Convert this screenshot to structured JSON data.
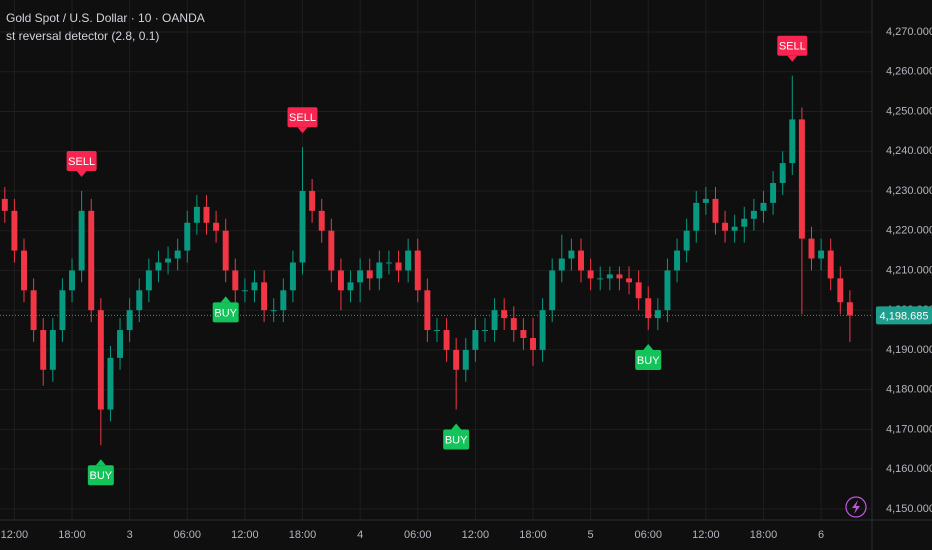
{
  "chart_data": {
    "type": "candlestick",
    "title": "Gold Spot / U.S. Dollar · 10 · OANDA",
    "subtitle": "st reversal detector (2.8, 0.1)",
    "x": [
      -1,
      0,
      1,
      2,
      3,
      4,
      5,
      6,
      7,
      8,
      9,
      10,
      11,
      12,
      13,
      14,
      15,
      16,
      17,
      18,
      19,
      20,
      21,
      22,
      23,
      24,
      25,
      26,
      27,
      28,
      29,
      30,
      31,
      32,
      33,
      34,
      35,
      36,
      37,
      38,
      39,
      40,
      41,
      42,
      43,
      44,
      45,
      46,
      47,
      48,
      49,
      50,
      51,
      52,
      53,
      54,
      55,
      56,
      57,
      58,
      59,
      60,
      61,
      62,
      63,
      64,
      65,
      66,
      67,
      68,
      69,
      70,
      71,
      72,
      73,
      74,
      75,
      76,
      77,
      78,
      79,
      80,
      81,
      82,
      83,
      84,
      85,
      86,
      87
    ],
    "open": [
      4228,
      4225,
      4215,
      4205,
      4195,
      4185,
      4195,
      4205,
      4210,
      4225,
      4200,
      4175,
      4188,
      4195,
      4200,
      4205,
      4210,
      4212,
      4213,
      4215,
      4222,
      4226,
      4222,
      4220,
      4210,
      4205,
      4205,
      4207,
      4200,
      4200,
      4205,
      4212,
      4230,
      4225,
      4220,
      4210,
      4205,
      4207,
      4210,
      4208,
      4212,
      4212,
      4210,
      4215,
      4205,
      4195,
      4195,
      4190,
      4185,
      4190,
      4195,
      4195,
      4200,
      4198,
      4195,
      4193,
      4190,
      4200,
      4210,
      4213,
      4215,
      4210,
      4208,
      4208,
      4209,
      4208,
      4207,
      4203,
      4198,
      4200,
      4210,
      4215,
      4220,
      4227,
      4228,
      4222,
      4220,
      4221,
      4223,
      4225,
      4227,
      4232,
      4237,
      4248,
      4218,
      4213,
      4215,
      4208,
      4202
    ],
    "high": [
      4231,
      4228,
      4218,
      4208,
      4198,
      4198,
      4208,
      4213,
      4230,
      4228,
      4203,
      4191,
      4198,
      4203,
      4208,
      4213,
      4215,
      4216,
      4218,
      4225,
      4229,
      4229,
      4225,
      4223,
      4213,
      4208,
      4210,
      4210,
      4203,
      4208,
      4215,
      4241,
      4233,
      4228,
      4223,
      4213,
      4210,
      4213,
      4213,
      4215,
      4215,
      4215,
      4218,
      4218,
      4208,
      4198,
      4198,
      4193,
      4193,
      4198,
      4198,
      4203,
      4203,
      4201,
      4198,
      4198,
      4203,
      4213,
      4219,
      4218,
      4218,
      4213,
      4211,
      4211,
      4211,
      4211,
      4210,
      4206,
      4203,
      4213,
      4218,
      4223,
      4230,
      4231,
      4231,
      4225,
      4224,
      4226,
      4228,
      4230,
      4235,
      4240,
      4259,
      4251,
      4221,
      4218,
      4218,
      4211,
      4205
    ],
    "low": [
      4222,
      4212,
      4202,
      4192,
      4181,
      4182,
      4192,
      4202,
      4207,
      4197,
      4166,
      4172,
      4185,
      4192,
      4197,
      4202,
      4207,
      4209,
      4210,
      4212,
      4219,
      4219,
      4217,
      4207,
      4202,
      4202,
      4202,
      4197,
      4197,
      4197,
      4202,
      4209,
      4222,
      4217,
      4207,
      4200,
      4202,
      4202,
      4205,
      4205,
      4209,
      4207,
      4207,
      4202,
      4192,
      4192,
      4187,
      4175,
      4182,
      4187,
      4192,
      4192,
      4195,
      4192,
      4190,
      4186,
      4187,
      4197,
      4207,
      4210,
      4207,
      4205,
      4205,
      4205,
      4205,
      4204,
      4200,
      4195,
      4195,
      4197,
      4207,
      4212,
      4217,
      4224,
      4219,
      4217,
      4217,
      4217,
      4220,
      4222,
      4224,
      4229,
      4234,
      4199,
      4210,
      4210,
      4205,
      4199,
      4192
    ],
    "close": [
      4225,
      4215,
      4205,
      4195,
      4185,
      4195,
      4205,
      4210,
      4225,
      4200,
      4175,
      4188,
      4195,
      4200,
      4205,
      4210,
      4212,
      4213,
      4215,
      4222,
      4226,
      4222,
      4220,
      4210,
      4205,
      4205,
      4207,
      4200,
      4200,
      4205,
      4212,
      4230,
      4225,
      4220,
      4210,
      4205,
      4207,
      4210,
      4208,
      4212,
      4212,
      4210,
      4215,
      4205,
      4195,
      4195,
      4190,
      4185,
      4190,
      4195,
      4195,
      4200,
      4198,
      4195,
      4193,
      4190,
      4200,
      4210,
      4213,
      4215,
      4210,
      4208,
      4208,
      4209,
      4208,
      4207,
      4203,
      4198,
      4200,
      4210,
      4215,
      4220,
      4227,
      4228,
      4222,
      4220,
      4221,
      4223,
      4225,
      4227,
      4232,
      4237,
      4248,
      4218,
      4213,
      4215,
      4208,
      4202,
      4198.685
    ],
    "up_color": "#089981",
    "down_color": "#f23645",
    "xlim": [
      -1.5,
      89.3
    ],
    "xticks": [
      {
        "value": 0,
        "label": "12:00"
      },
      {
        "value": 6,
        "label": "18:00"
      },
      {
        "value": 12,
        "label": "3"
      },
      {
        "value": 18,
        "label": "06:00"
      },
      {
        "value": 24,
        "label": "12:00"
      },
      {
        "value": 30,
        "label": "18:00"
      },
      {
        "value": 36,
        "label": "4"
      },
      {
        "value": 42,
        "label": "06:00"
      },
      {
        "value": 48,
        "label": "12:00"
      },
      {
        "value": 54,
        "label": "18:00"
      },
      {
        "value": 60,
        "label": "5"
      },
      {
        "value": 66,
        "label": "06:00"
      },
      {
        "value": 72,
        "label": "12:00"
      },
      {
        "value": 78,
        "label": "18:00"
      },
      {
        "value": 84,
        "label": "6"
      }
    ],
    "ylim": [
      4147.2,
      4278.05
    ],
    "yticks": [
      {
        "value": 4150,
        "label": "4,150.000"
      },
      {
        "value": 4160,
        "label": "4,160.000"
      },
      {
        "value": 4170,
        "label": "4,170.000"
      },
      {
        "value": 4180,
        "label": "4,180.000"
      },
      {
        "value": 4190,
        "label": "4,190.000"
      },
      {
        "value": 4200,
        "label": "4,200.000"
      },
      {
        "value": 4210,
        "label": "4,210.000"
      },
      {
        "value": 4220,
        "label": "4,220.000"
      },
      {
        "value": 4230,
        "label": "4,230.000"
      },
      {
        "value": 4240,
        "label": "4,240.000"
      },
      {
        "value": 4250,
        "label": "4,250.000"
      },
      {
        "value": 4260,
        "label": "4,260.000"
      },
      {
        "value": 4270,
        "label": "4,270.000"
      }
    ],
    "grid": true,
    "last_price": {
      "value": 4198.685,
      "label": "4,198.685",
      "color": "#1e9e8c"
    },
    "signals": [
      {
        "label": "SELL",
        "x": 7
      },
      {
        "label": "BUY",
        "x": 9
      },
      {
        "label": "BUY",
        "x": 22
      },
      {
        "label": "SELL",
        "x": 30
      },
      {
        "label": "BUY",
        "x": 46
      },
      {
        "label": "BUY",
        "x": 66
      },
      {
        "label": "SELL",
        "x": 81
      }
    ],
    "buy_color": "#14c35a",
    "sell_color": "#f7254f"
  }
}
